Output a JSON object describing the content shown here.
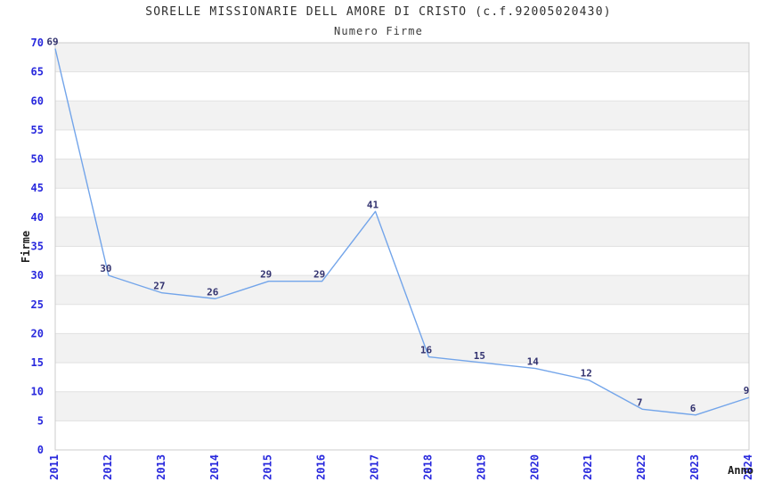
{
  "chart_data": {
    "type": "line",
    "title": "SORELLE MISSIONARIE DELL AMORE DI CRISTO (c.f.92005020430)",
    "subtitle": "Numero Firme",
    "xlabel": "Anno",
    "ylabel": "Firme",
    "categories": [
      "2011",
      "2012",
      "2013",
      "2014",
      "2015",
      "2016",
      "2017",
      "2018",
      "2019",
      "2020",
      "2021",
      "2022",
      "2023",
      "2024"
    ],
    "series": [
      {
        "name": "Numero Firme",
        "values": [
          69,
          30,
          27,
          26,
          29,
          29,
          41,
          16,
          15,
          14,
          12,
          7,
          6,
          9
        ]
      }
    ],
    "ylim": [
      0,
      70
    ],
    "ytick_step": 5,
    "grid": true,
    "legend_position": "none",
    "show_point_labels": true,
    "layout_hints": {
      "alternating_bands": true,
      "x_tick_rotation_deg": -90
    },
    "colors": {
      "line": "#73a5ea",
      "tick_label": "#2828dd",
      "data_label": "#333370",
      "band": "#f2f2f2",
      "grid_line": "#e1e1e1",
      "plot_border": "#cccccc",
      "title": "#2e2e2e",
      "axis_title": "#1c1c1c",
      "background": "#ffffff"
    }
  }
}
